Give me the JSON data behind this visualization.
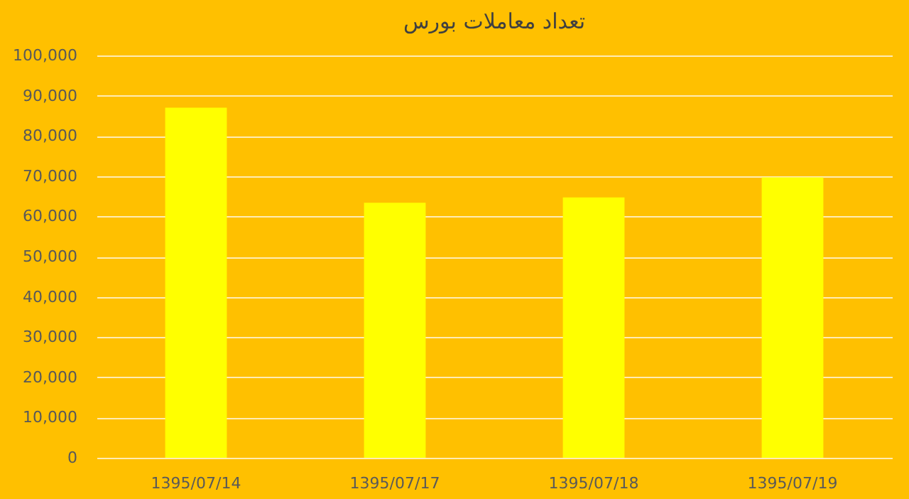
{
  "chart_data": {
    "type": "bar",
    "title": "تعداد معاملات بورس",
    "categories": [
      "1395/07/14",
      "1395/07/17",
      "1395/07/18",
      "1395/07/19"
    ],
    "values": [
      87000,
      63400,
      64700,
      69700
    ],
    "color": "#ffff00",
    "ylim": [
      0,
      100000
    ],
    "yticks": [
      0,
      {
        "value": 10000,
        "label": "10,000"
      },
      {
        "value": 20000,
        "label": "20,000"
      },
      {
        "value": 30000,
        "label": "30,000"
      },
      {
        "value": 40000,
        "label": "40,000"
      },
      {
        "value": 50000,
        "label": "50,000"
      },
      {
        "value": 60000,
        "label": "60,000"
      },
      {
        "value": 70000,
        "label": "70,000"
      },
      {
        "value": 80000,
        "label": "80,000"
      },
      {
        "value": 90000,
        "label": "90,000"
      },
      {
        "value": 100000,
        "label": "100,000"
      }
    ],
    "grid": "y"
  }
}
